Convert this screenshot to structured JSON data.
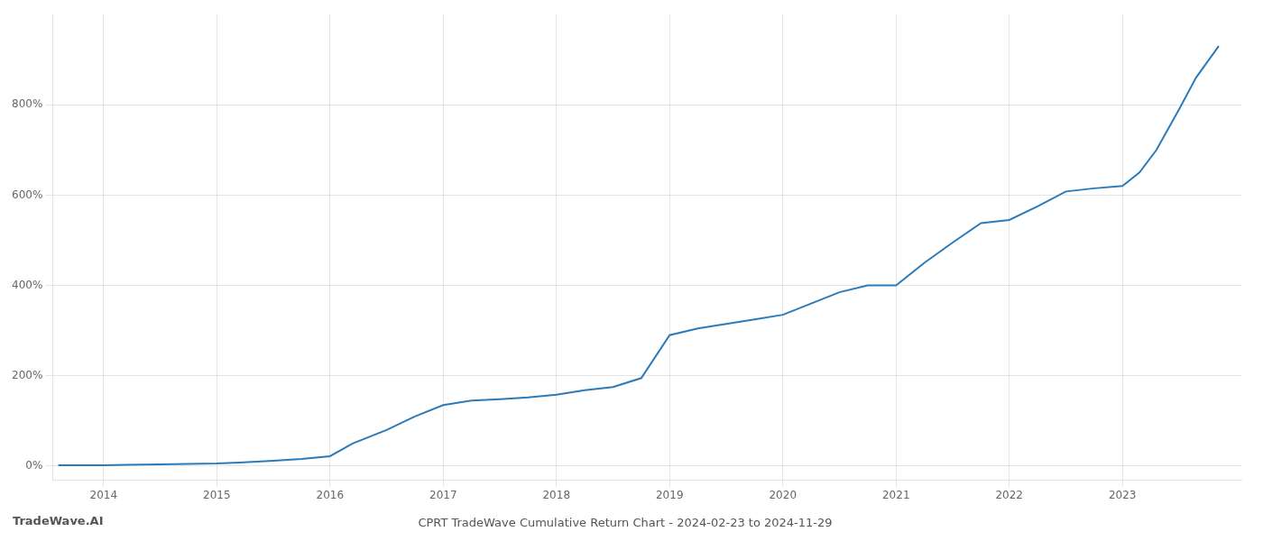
{
  "chart_data": {
    "type": "line",
    "title": "CPRT TradeWave Cumulative Return Chart - 2024-02-23 to 2024-11-29",
    "annotations": [
      "TradeWave.AI"
    ],
    "x": [
      2013.6,
      2013.75,
      2013.9,
      2014.0,
      2014.2,
      2014.5,
      2014.75,
      2015.0,
      2015.2,
      2015.5,
      2015.75,
      2016.0,
      2016.2,
      2016.5,
      2016.75,
      2017.0,
      2017.25,
      2017.5,
      2017.75,
      2018.0,
      2018.1,
      2018.25,
      2018.5,
      2018.75,
      2019.0,
      2019.25,
      2019.5,
      2019.75,
      2020.0,
      2020.25,
      2020.5,
      2020.75,
      2021.0,
      2021.25,
      2021.5,
      2021.75,
      2022.0,
      2022.25,
      2022.5,
      2022.75,
      2023.0,
      2023.15,
      2023.3,
      2023.5,
      2023.65,
      2023.85
    ],
    "series": [
      {
        "color": "#2b7bba",
        "values": [
          2,
          2,
          2,
          2,
          3,
          4,
          5,
          6,
          8,
          12,
          16,
          22,
          50,
          80,
          110,
          135,
          145,
          148,
          152,
          158,
          162,
          168,
          175,
          195,
          290,
          305,
          315,
          325,
          335,
          360,
          385,
          400,
          400,
          450,
          495,
          538,
          545,
          575,
          608,
          615,
          620,
          650,
          700,
          790,
          860,
          930
        ]
      }
    ],
    "xlim": [
      2013.55,
      2024.05
    ],
    "xticks": [
      2014,
      2015,
      2016,
      2017,
      2018,
      2019,
      2020,
      2021,
      2022,
      2023
    ],
    "ylim": [
      -30,
      1000
    ],
    "yticks": [
      {
        "value": 0,
        "label": "0%"
      },
      {
        "value": 200,
        "label": "200%"
      },
      {
        "value": 400,
        "label": "400%"
      },
      {
        "value": 600,
        "label": "600%"
      },
      {
        "value": 800,
        "label": "800%"
      }
    ],
    "grid": true
  }
}
